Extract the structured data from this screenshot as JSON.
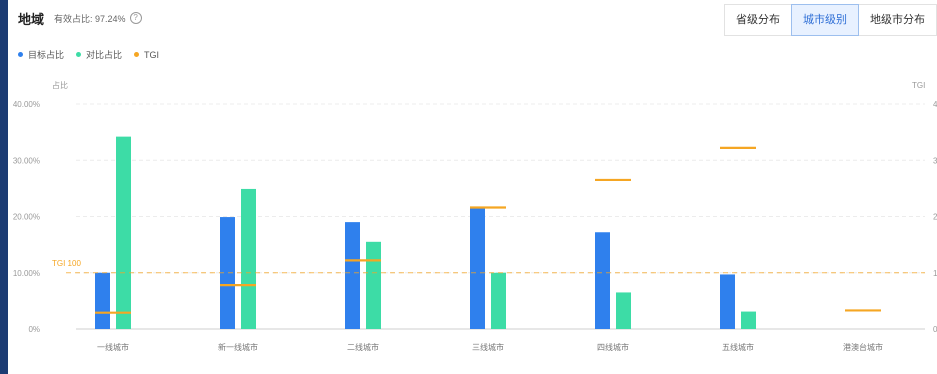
{
  "header": {
    "title": "地域",
    "valid_text": "有效占比: 97.24%",
    "help_icon": "question-circle-icon"
  },
  "tabs": [
    {
      "label": "省级分布",
      "active": false
    },
    {
      "label": "城市级别",
      "active": true
    },
    {
      "label": "地级市分布",
      "active": false
    }
  ],
  "legend": [
    {
      "label": "目标占比",
      "color": "#2f80ed"
    },
    {
      "label": "对比占比",
      "color": "#3ddca6"
    },
    {
      "label": "TGI",
      "color": "#f5a623"
    }
  ],
  "colors": {
    "target": "#2f80ed",
    "compare": "#3ddca6",
    "tgi": "#f5a623",
    "stripe": "#1c3c73"
  },
  "chart_data": {
    "type": "bar",
    "left_axis_label": "占比",
    "right_axis_label": "TGI",
    "categories": [
      "一线城市",
      "新一线城市",
      "二线城市",
      "三线城市",
      "四线城市",
      "五线城市",
      "港澳台城市"
    ],
    "left_ticks": [
      "0%",
      "10.00%",
      "20.00%",
      "30.00%",
      "40.00%"
    ],
    "right_ticks": [
      "0",
      "1",
      "2",
      "3",
      "4"
    ],
    "ylim_left": [
      0,
      40
    ],
    "ylim_right": [
      0,
      4
    ],
    "series": [
      {
        "name": "目标占比",
        "kind": "bar",
        "values": [
          10.0,
          19.9,
          19.0,
          21.5,
          17.2,
          9.7,
          0
        ]
      },
      {
        "name": "对比占比",
        "kind": "bar",
        "values": [
          34.2,
          24.9,
          15.5,
          10.0,
          6.5,
          3.1,
          0
        ]
      },
      {
        "name": "TGI",
        "kind": "marker",
        "values": [
          0.29,
          0.78,
          1.22,
          2.16,
          2.65,
          3.22,
          0.33
        ]
      }
    ],
    "reference_line": {
      "label": "TGI 100",
      "value": 1
    }
  }
}
